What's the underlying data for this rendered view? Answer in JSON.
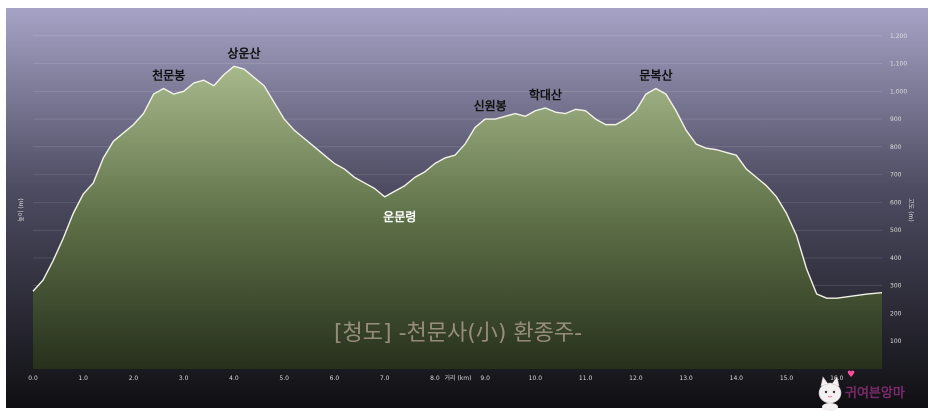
{
  "chart_data": {
    "type": "area",
    "title": "",
    "xlabel": "거리 (km)",
    "ylabel": "높이 (m)",
    "y2label": "고도 (m)",
    "xlim": [
      0,
      16.9
    ],
    "ylim": [
      0,
      1300
    ],
    "x_ticks": [
      "0.0",
      "1.0",
      "2.0",
      "3.0",
      "4.0",
      "5.0",
      "6.0",
      "7.0",
      "8.0",
      "9.0",
      "10.0",
      "11.0",
      "12.0",
      "13.0",
      "14.0",
      "15.0",
      "16.0"
    ],
    "y_ticks": [
      "100",
      "200",
      "300",
      "400",
      "500",
      "600",
      "700",
      "800",
      "900",
      "1,000",
      "1,100",
      "1,200"
    ],
    "grid": true,
    "colors": {
      "fill_top": "#8a9e6e",
      "fill_bottom": "#2f3a22",
      "line": "#f2f2e8",
      "peak_label": "#111111",
      "valley_label": "#ffffff",
      "bg_top": "#9a98bb",
      "bg_bottom": "#141418"
    },
    "series": [
      {
        "x": [
          0.0,
          0.2,
          0.4,
          0.6,
          0.8,
          1.0,
          1.2,
          1.4,
          1.6,
          1.8,
          2.0,
          2.2,
          2.4,
          2.6,
          2.8,
          3.0,
          3.2,
          3.4,
          3.6,
          3.8,
          4.0,
          4.2,
          4.4,
          4.6,
          4.8,
          5.0,
          5.2,
          5.4,
          5.6,
          5.8,
          6.0,
          6.2,
          6.4,
          6.6,
          6.8,
          7.0,
          7.2,
          7.4,
          7.6,
          7.8,
          8.0,
          8.2,
          8.4,
          8.6,
          8.8,
          9.0,
          9.2,
          9.4,
          9.6,
          9.8,
          10.0,
          10.2,
          10.4,
          10.6,
          10.8,
          11.0,
          11.2,
          11.4,
          11.6,
          11.8,
          12.0,
          12.2,
          12.4,
          12.6,
          12.8,
          13.0,
          13.2,
          13.4,
          13.6,
          13.8,
          14.0,
          14.2,
          14.4,
          14.6,
          14.8,
          15.0,
          15.2,
          15.4,
          15.6,
          15.8,
          16.0,
          16.2,
          16.4,
          16.6,
          16.9
        ],
        "y": [
          280,
          320,
          390,
          470,
          560,
          630,
          670,
          760,
          820,
          850,
          880,
          920,
          990,
          1010,
          990,
          1000,
          1030,
          1040,
          1020,
          1060,
          1090,
          1080,
          1050,
          1020,
          960,
          900,
          860,
          830,
          800,
          770,
          740,
          720,
          690,
          670,
          650,
          620,
          640,
          660,
          690,
          710,
          740,
          760,
          770,
          810,
          870,
          900,
          900,
          910,
          920,
          910,
          930,
          940,
          925,
          920,
          935,
          930,
          900,
          880,
          880,
          900,
          930,
          990,
          1010,
          990,
          930,
          860,
          810,
          795,
          790,
          780,
          770,
          720,
          690,
          660,
          620,
          560,
          480,
          360,
          270,
          255,
          255,
          260,
          265,
          270,
          275
        ]
      }
    ],
    "annotations": [
      {
        "text": "천문봉",
        "x": 2.7,
        "y": 1010,
        "style": "peak"
      },
      {
        "text": "상운산",
        "x": 4.2,
        "y": 1090,
        "style": "peak"
      },
      {
        "text": "운문령",
        "x": 7.3,
        "y": 620,
        "style": "valley"
      },
      {
        "text": "신원봉",
        "x": 9.1,
        "y": 900,
        "style": "peak"
      },
      {
        "text": "학대산",
        "x": 10.2,
        "y": 940,
        "style": "peak"
      },
      {
        "text": "문복산",
        "x": 12.4,
        "y": 1010,
        "style": "peak"
      }
    ]
  },
  "watermark": "[청도] -천문사(小) 환종주-",
  "logo_text": "귀여븐앙마"
}
